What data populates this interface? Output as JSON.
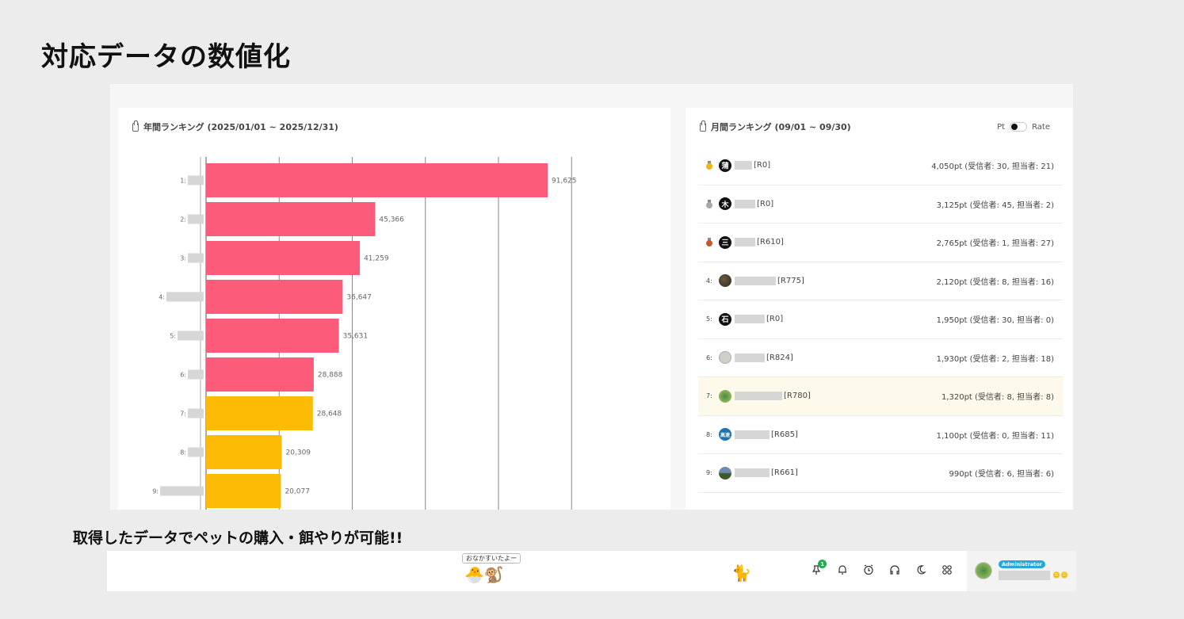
{
  "page_title": "対応データの数値化",
  "subtitle": "取得したデータでペットの購入・餌やりが可能!!",
  "yearly": {
    "header": "年間ランキング (2025/01/01 ~ 2025/12/31)"
  },
  "chart_data": {
    "type": "bar",
    "orientation": "horizontal",
    "categories": [
      "1:",
      "2:",
      "3:",
      "4:",
      "5:",
      "6:",
      "7:",
      "8:",
      "9:"
    ],
    "values": [
      91625,
      45366,
      41259,
      36647,
      35631,
      28888,
      28648,
      20309,
      20077
    ],
    "value_labels": [
      "91,625",
      "45,366",
      "41,259",
      "36,647",
      "35,631",
      "28,888",
      "28,648",
      "20,309",
      "20,077"
    ],
    "bar_colors": [
      "#fc5c7a",
      "#fc5c7a",
      "#fc5c7a",
      "#fc5c7a",
      "#fc5c7a",
      "#fc5c7a",
      "#fdbb05",
      "#fdbb05",
      "#fdbb05"
    ],
    "xlim": [
      0,
      100000
    ],
    "grid": true,
    "title": "",
    "xlabel": "",
    "ylabel": ""
  },
  "monthly": {
    "header": "月間ランキング (09/01 ~ 09/30)",
    "toggle_left": "Pt",
    "toggle_right": "Rate",
    "rows": [
      {
        "rank": "",
        "medal": "gold",
        "avatar": "蒲",
        "avatar_style": "av-black",
        "tag": "[R0]",
        "score": "4,050pt (受信者: 30, 担当者: 21)"
      },
      {
        "rank": "",
        "medal": "silver",
        "avatar": "木",
        "avatar_style": "av-black",
        "tag": "[R0]",
        "score": "3,125pt (受信者: 45, 担当者: 2)"
      },
      {
        "rank": "",
        "medal": "bronze",
        "avatar": "三",
        "avatar_style": "av-black",
        "tag": "[R610]",
        "score": "2,765pt (受信者: 1, 担当者: 27)"
      },
      {
        "rank": "4:",
        "medal": "",
        "avatar": "",
        "avatar_style": "av-photo1",
        "tag": "[R775]",
        "score": "2,120pt (受信者: 8, 担当者: 16)"
      },
      {
        "rank": "5:",
        "medal": "",
        "avatar": "石",
        "avatar_style": "av-black",
        "tag": "[R0]",
        "score": "1,950pt (受信者: 30, 担当者: 0)"
      },
      {
        "rank": "6:",
        "medal": "",
        "avatar": "",
        "avatar_style": "av-grey",
        "tag": "[R824]",
        "score": "1,930pt (受信者: 2, 担当者: 18)"
      },
      {
        "rank": "7:",
        "medal": "",
        "avatar": "",
        "avatar_style": "av-green",
        "tag": "[R780]",
        "score": "1,320pt (受信者: 8, 担当者: 8)"
      },
      {
        "rank": "8:",
        "medal": "",
        "avatar": "高速",
        "avatar_style": "av-blue",
        "tag": "[R685]",
        "score": "1,100pt (受信者: 0, 担当者: 11)"
      },
      {
        "rank": "9:",
        "medal": "",
        "avatar": "",
        "avatar_style": "av-land",
        "tag": "[R661]",
        "score": "990pt (受信者: 6, 担当者: 6)"
      }
    ]
  },
  "bottom_bar": {
    "speech": "おなかすいたよー",
    "pet_emoji": "🐣🐒",
    "cat_emoji": "🐈",
    "notification_count": "1",
    "icons": [
      "pin-icon",
      "bell-icon",
      "alarm-clock-icon",
      "headphones-icon",
      "moon-icon",
      "apps-grid-icon"
    ],
    "role": "Administrator",
    "coins": "🪙🪙"
  },
  "colors": {
    "primary_bar": "#fc5c7a",
    "secondary_bar": "#fdbb05",
    "highlight_row": "#fdfaeb",
    "role_badge": "#28a8d8"
  }
}
